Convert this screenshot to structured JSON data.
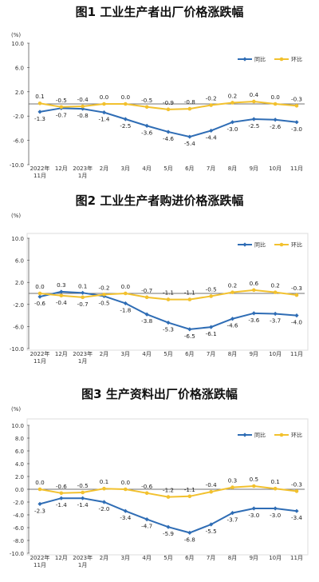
{
  "colors": {
    "yoy": "#2f6db5",
    "mom": "#f2c12e",
    "axis": "#444444",
    "box": "#dddddd"
  },
  "charts": [
    {
      "title": "图1 工业生产者出厂价格涨跌幅",
      "unit": "(%)",
      "legend": {
        "yoy": "同比",
        "mom": "环比"
      },
      "yticks": [
        "10.0",
        "6.0",
        "2.0",
        "-2.0",
        "-6.0",
        "-10.0"
      ],
      "xticks": [
        "2022年\n11月",
        "12月",
        "2023年\n1月",
        "2月",
        "3月",
        "4月",
        "5月",
        "6月",
        "7月",
        "8月",
        "9月",
        "10月",
        "11月"
      ]
    },
    {
      "title": "图2 工业生产者购进价格涨跌幅",
      "unit": "(%)",
      "legend": {
        "yoy": "同比",
        "mom": "环比"
      },
      "yticks": [
        "10.0",
        "6.0",
        "2.0",
        "-2.0",
        "-6.0",
        "-10.0"
      ],
      "xticks": [
        "2022年\n11月",
        "12月",
        "2023年\n1月",
        "2月",
        "3月",
        "4月",
        "5月",
        "6月",
        "7月",
        "8月",
        "9月",
        "10月",
        "11月"
      ]
    },
    {
      "title": "图3 生产资料出厂价格涨跌幅",
      "unit": "(%)",
      "legend": {
        "yoy": "同比",
        "mom": "环比"
      },
      "yticks": [
        "10.0",
        "8.0",
        "6.0",
        "4.0",
        "2.0",
        "0.0",
        "-2.0",
        "-4.0",
        "-6.0",
        "-8.0",
        "-10.0"
      ],
      "xticks": [
        "2022年\n11月",
        "12月",
        "2023年\n1月",
        "2月",
        "3月",
        "4月",
        "5月",
        "6月",
        "7月",
        "8月",
        "9月",
        "10月",
        "11月"
      ]
    }
  ],
  "chart_data": [
    {
      "type": "line",
      "title": "图1 工业生产者出厂价格涨跌幅",
      "ylabel": "(%)",
      "ylim": [
        -10,
        10
      ],
      "categories": [
        "2022年11月",
        "12月",
        "2023年1月",
        "2月",
        "3月",
        "4月",
        "5月",
        "6月",
        "7月",
        "8月",
        "9月",
        "10月",
        "11月"
      ],
      "series": [
        {
          "name": "同比",
          "values": [
            -1.3,
            -0.7,
            -0.8,
            -1.4,
            -2.5,
            -3.6,
            -4.6,
            -5.4,
            -4.4,
            -3.0,
            -2.5,
            -2.6,
            -3.0
          ]
        },
        {
          "name": "环比",
          "values": [
            0.1,
            -0.5,
            -0.4,
            0.0,
            0.0,
            -0.5,
            -0.9,
            -0.8,
            -0.2,
            0.2,
            0.4,
            0.0,
            -0.3
          ]
        }
      ],
      "legend": "top-right"
    },
    {
      "type": "line",
      "title": "图2 工业生产者购进价格涨跌幅",
      "ylabel": "(%)",
      "ylim": [
        -10,
        10
      ],
      "categories": [
        "2022年11月",
        "12月",
        "2023年1月",
        "2月",
        "3月",
        "4月",
        "5月",
        "6月",
        "7月",
        "8月",
        "9月",
        "10月",
        "11月"
      ],
      "series": [
        {
          "name": "同比",
          "values": [
            -0.6,
            0.3,
            0.1,
            -0.5,
            -1.8,
            -3.8,
            -5.3,
            -6.5,
            -6.1,
            -4.6,
            -3.6,
            -3.7,
            -4.0
          ]
        },
        {
          "name": "环比",
          "values": [
            0.0,
            -0.4,
            -0.7,
            -0.2,
            0.0,
            -0.7,
            -1.1,
            -1.1,
            -0.5,
            0.2,
            0.6,
            0.2,
            -0.3
          ]
        }
      ],
      "legend": "top-right"
    },
    {
      "type": "line",
      "title": "图3 生产资料出厂价格涨跌幅",
      "ylabel": "(%)",
      "ylim": [
        -10,
        10
      ],
      "categories": [
        "2022年11月",
        "12月",
        "2023年1月",
        "2月",
        "3月",
        "4月",
        "5月",
        "6月",
        "7月",
        "8月",
        "9月",
        "10月",
        "11月"
      ],
      "series": [
        {
          "name": "同比",
          "values": [
            -2.3,
            -1.4,
            -1.4,
            -2.0,
            -3.4,
            -4.7,
            -5.9,
            -6.8,
            -5.5,
            -3.7,
            -3.0,
            -3.0,
            -3.4
          ]
        },
        {
          "name": "环比",
          "values": [
            0.0,
            -0.6,
            -0.5,
            0.1,
            0.0,
            -0.6,
            -1.2,
            -1.1,
            -0.4,
            0.3,
            0.5,
            0.1,
            -0.3
          ]
        }
      ],
      "legend": "top-right"
    }
  ]
}
